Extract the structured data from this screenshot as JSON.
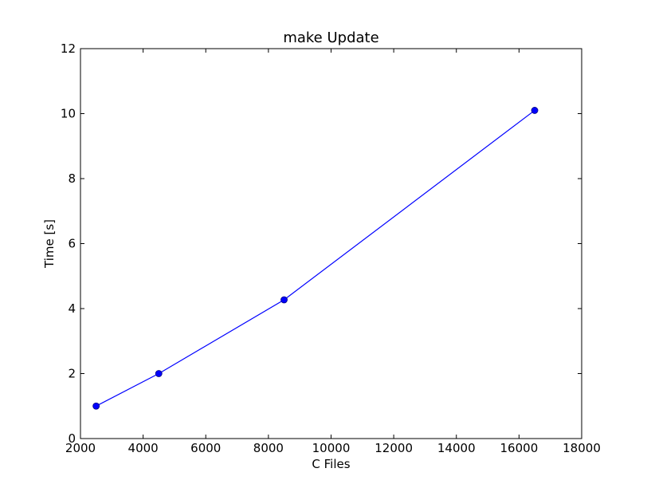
{
  "chart_data": {
    "type": "line",
    "title": "make Update",
    "xlabel": "C Files",
    "ylabel": "Time [s]",
    "xlim": [
      2000,
      18000
    ],
    "ylim": [
      0,
      12
    ],
    "xticks": [
      2000,
      4000,
      6000,
      8000,
      10000,
      12000,
      14000,
      16000,
      18000
    ],
    "yticks": [
      0,
      2,
      4,
      6,
      8,
      10,
      12
    ],
    "grid": false,
    "series": [
      {
        "x": [
          2500,
          4500,
          8500,
          16500
        ],
        "y": [
          1.0,
          2.0,
          4.27,
          10.1
        ],
        "color": "#0000ff",
        "marker": "circle"
      }
    ]
  }
}
